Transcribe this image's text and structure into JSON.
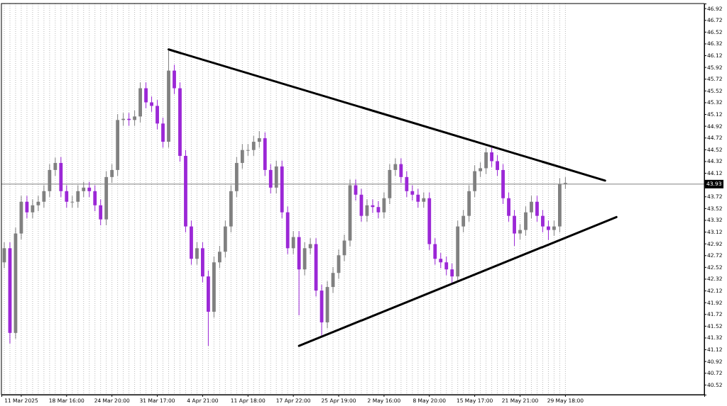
{
  "chart_data": {
    "type": "candlestick",
    "categories": [
      null,
      null,
      null,
      "11 Mar 2025",
      null,
      null,
      null,
      null,
      null,
      null,
      null,
      "18 Mar 16:00",
      null,
      null,
      null,
      null,
      null,
      null,
      null,
      "24 Mar 20:00",
      null,
      null,
      null,
      null,
      null,
      null,
      null,
      "31 Mar 17:00",
      null,
      null,
      null,
      null,
      null,
      null,
      null,
      "4 Apr 21:00",
      null,
      null,
      null,
      null,
      null,
      null,
      null,
      "11 Apr 18:00",
      null,
      null,
      null,
      null,
      null,
      null,
      null,
      "17 Apr 22:00",
      null,
      null,
      null,
      null,
      null,
      null,
      null,
      "25 Apr 19:00",
      null,
      null,
      null,
      null,
      null,
      null,
      null,
      "2 May 16:00",
      null,
      null,
      null,
      null,
      null,
      null,
      null,
      "8 May 20:00",
      null,
      null,
      null,
      null,
      null,
      null,
      null,
      "15 May 17:00",
      null,
      null,
      null,
      null,
      null,
      null,
      null,
      "21 May 21:00",
      null,
      null,
      null,
      null,
      null,
      null,
      null,
      "29 May 18:00",
      null,
      null,
      null,
      null,
      null,
      null,
      null,
      null,
      null,
      null,
      null,
      null,
      null,
      null,
      null,
      null,
      null,
      null,
      null,
      null,
      null,
      null,
      null,
      null
    ],
    "ohlc": [
      [
        42.6,
        42.94,
        42.5,
        42.84
      ],
      [
        42.84,
        42.94,
        41.22,
        41.4
      ],
      [
        41.4,
        43.19,
        41.3,
        43.09
      ],
      [
        43.09,
        43.73,
        42.99,
        43.63
      ],
      [
        43.63,
        43.73,
        43.35,
        43.45
      ],
      [
        43.45,
        43.67,
        43.35,
        43.57
      ],
      [
        43.57,
        43.73,
        43.47,
        43.63
      ],
      [
        43.63,
        43.91,
        43.53,
        43.81
      ],
      [
        43.81,
        44.27,
        43.71,
        44.17
      ],
      [
        44.17,
        44.38,
        44.07,
        44.29
      ],
      [
        44.29,
        44.39,
        43.71,
        43.81
      ],
      [
        43.81,
        43.91,
        43.53,
        43.63
      ],
      [
        43.63,
        43.73,
        43.53,
        43.63
      ],
      [
        43.63,
        43.91,
        43.53,
        43.81
      ],
      [
        43.81,
        43.97,
        43.71,
        43.87
      ],
      [
        43.87,
        43.97,
        43.71,
        43.81
      ],
      [
        43.81,
        43.91,
        43.47,
        43.57
      ],
      [
        43.57,
        43.67,
        43.23,
        43.33
      ],
      [
        43.33,
        44.15,
        43.23,
        44.05
      ],
      [
        44.05,
        44.27,
        43.95,
        44.17
      ],
      [
        44.17,
        45.12,
        44.07,
        45.02
      ],
      [
        45.02,
        45.14,
        44.92,
        45.04
      ],
      [
        45.04,
        45.14,
        44.92,
        45.02
      ],
      [
        45.02,
        45.18,
        44.92,
        45.08
      ],
      [
        45.08,
        45.66,
        44.98,
        45.56
      ],
      [
        45.56,
        45.66,
        45.22,
        45.32
      ],
      [
        45.32,
        45.42,
        45.16,
        45.26
      ],
      [
        45.26,
        45.36,
        44.86,
        44.96
      ],
      [
        44.96,
        45.06,
        44.55,
        44.65
      ],
      [
        44.65,
        46.2,
        44.55,
        45.86
      ],
      [
        45.86,
        45.96,
        45.46,
        45.56
      ],
      [
        45.56,
        45.66,
        44.31,
        44.41
      ],
      [
        44.41,
        44.51,
        43.11,
        43.21
      ],
      [
        43.21,
        43.31,
        42.56,
        42.66
      ],
      [
        42.66,
        42.94,
        42.56,
        42.84
      ],
      [
        42.84,
        42.94,
        42.26,
        42.36
      ],
      [
        42.36,
        42.46,
        41.18,
        41.76
      ],
      [
        41.76,
        42.7,
        41.66,
        42.6
      ],
      [
        42.6,
        42.88,
        42.5,
        42.78
      ],
      [
        42.78,
        43.31,
        42.68,
        43.21
      ],
      [
        43.21,
        43.91,
        43.11,
        43.81
      ],
      [
        43.81,
        44.39,
        43.71,
        44.29
      ],
      [
        44.29,
        44.61,
        44.19,
        44.51
      ],
      [
        44.51,
        44.61,
        44.41,
        44.51
      ],
      [
        44.51,
        44.75,
        44.41,
        44.65
      ],
      [
        44.65,
        44.83,
        44.55,
        44.71
      ],
      [
        44.71,
        44.81,
        44.07,
        44.17
      ],
      [
        44.17,
        44.27,
        43.77,
        43.87
      ],
      [
        43.87,
        44.33,
        43.77,
        44.23
      ],
      [
        44.23,
        44.33,
        43.35,
        43.45
      ],
      [
        43.45,
        43.55,
        42.74,
        42.84
      ],
      [
        42.84,
        43.13,
        42.74,
        43.03
      ],
      [
        43.03,
        43.13,
        41.7,
        42.48
      ],
      [
        42.48,
        42.94,
        42.38,
        42.84
      ],
      [
        42.84,
        43.01,
        42.74,
        42.91
      ],
      [
        42.91,
        43.01,
        42.02,
        42.12
      ],
      [
        42.12,
        42.22,
        41.35,
        41.58
      ],
      [
        41.58,
        42.28,
        41.48,
        42.18
      ],
      [
        42.18,
        42.52,
        42.08,
        42.42
      ],
      [
        42.42,
        42.82,
        42.32,
        42.72
      ],
      [
        42.72,
        43.07,
        42.62,
        42.97
      ],
      [
        42.97,
        44.01,
        42.87,
        43.91
      ],
      [
        43.91,
        44.01,
        43.65,
        43.75
      ],
      [
        43.75,
        43.85,
        43.29,
        43.39
      ],
      [
        43.39,
        43.67,
        43.29,
        43.57
      ],
      [
        43.57,
        43.67,
        43.44,
        43.54
      ],
      [
        43.54,
        43.64,
        43.35,
        43.45
      ],
      [
        43.45,
        43.79,
        43.35,
        43.69
      ],
      [
        43.69,
        44.27,
        43.59,
        44.17
      ],
      [
        44.17,
        44.37,
        44.07,
        44.27
      ],
      [
        44.27,
        44.37,
        43.95,
        44.05
      ],
      [
        44.05,
        44.15,
        43.71,
        43.81
      ],
      [
        43.81,
        43.91,
        43.65,
        43.75
      ],
      [
        43.75,
        43.85,
        43.53,
        43.63
      ],
      [
        43.63,
        43.79,
        43.53,
        43.69
      ],
      [
        43.69,
        43.79,
        42.81,
        42.91
      ],
      [
        42.91,
        43.01,
        42.56,
        42.66
      ],
      [
        42.66,
        42.76,
        42.5,
        42.6
      ],
      [
        42.6,
        42.7,
        42.38,
        42.48
      ],
      [
        42.48,
        42.58,
        42.25,
        42.36
      ],
      [
        42.36,
        43.31,
        42.26,
        43.21
      ],
      [
        43.21,
        43.49,
        43.11,
        43.39
      ],
      [
        43.39,
        43.91,
        43.29,
        43.81
      ],
      [
        43.81,
        44.25,
        43.71,
        44.15
      ],
      [
        44.15,
        44.3,
        44.05,
        44.2
      ],
      [
        44.2,
        44.55,
        44.1,
        44.47
      ],
      [
        44.47,
        44.57,
        44.22,
        44.32
      ],
      [
        44.32,
        44.42,
        44.07,
        44.17
      ],
      [
        44.17,
        44.27,
        43.59,
        43.69
      ],
      [
        43.69,
        43.79,
        43.29,
        43.39
      ],
      [
        43.39,
        43.49,
        42.88,
        43.09
      ],
      [
        43.09,
        43.25,
        42.99,
        43.15
      ],
      [
        43.15,
        43.55,
        43.05,
        43.45
      ],
      [
        43.45,
        43.73,
        43.35,
        43.63
      ],
      [
        43.63,
        43.73,
        43.29,
        43.39
      ],
      [
        43.39,
        43.49,
        43.11,
        43.21
      ],
      [
        43.21,
        43.31,
        42.98,
        43.15
      ],
      [
        43.15,
        43.31,
        43.05,
        43.21
      ],
      [
        43.21,
        44.03,
        43.11,
        43.93
      ],
      [
        43.93,
        44.05,
        43.85,
        43.95
      ],
      null,
      null,
      null,
      null,
      null,
      null,
      null,
      null,
      null,
      null,
      null,
      null,
      null,
      null,
      null,
      null,
      null,
      null,
      null,
      null,
      null,
      null,
      null,
      null
    ],
    "colors": [
      "#808080",
      "#9b27d6",
      "#808080",
      "#808080",
      "#9b27d6",
      "#808080",
      "#808080",
      "#808080",
      "#808080",
      "#808080",
      "#9b27d6",
      "#9b27d6",
      "#808080",
      "#808080",
      "#808080",
      "#9b27d6",
      "#9b27d6",
      "#9b27d6",
      "#808080",
      "#808080",
      "#808080",
      "#808080",
      "#9b27d6",
      "#808080",
      "#808080",
      "#9b27d6",
      "#9b27d6",
      "#9b27d6",
      "#9b27d6",
      "#808080",
      "#9b27d6",
      "#9b27d6",
      "#9b27d6",
      "#9b27d6",
      "#808080",
      "#9b27d6",
      "#9b27d6",
      "#808080",
      "#808080",
      "#808080",
      "#808080",
      "#808080",
      "#808080",
      "#808080",
      "#808080",
      "#808080",
      "#9b27d6",
      "#9b27d6",
      "#808080",
      "#9b27d6",
      "#9b27d6",
      "#808080",
      "#9b27d6",
      "#808080",
      "#808080",
      "#9b27d6",
      "#9b27d6",
      "#808080",
      "#808080",
      "#808080",
      "#808080",
      "#808080",
      "#9b27d6",
      "#9b27d6",
      "#808080",
      "#9b27d6",
      "#9b27d6",
      "#808080",
      "#808080",
      "#808080",
      "#9b27d6",
      "#9b27d6",
      "#9b27d6",
      "#9b27d6",
      "#808080",
      "#9b27d6",
      "#9b27d6",
      "#9b27d6",
      "#9b27d6",
      "#9b27d6",
      "#808080",
      "#808080",
      "#808080",
      "#808080",
      "#808080",
      "#808080",
      "#9b27d6",
      "#9b27d6",
      "#9b27d6",
      "#9b27d6",
      "#9b27d6",
      "#808080",
      "#808080",
      "#808080",
      "#9b27d6",
      "#9b27d6",
      "#9b27d6",
      "#808080",
      "#808080",
      "#808080",
      null,
      null,
      null,
      null,
      null,
      null,
      null,
      null,
      null,
      null,
      null,
      null,
      null,
      null,
      null,
      null,
      null,
      null,
      null,
      null,
      null,
      null,
      null,
      null
    ],
    "series": [
      {
        "type": "line",
        "color": "#000000",
        "values": [
          null,
          null,
          null,
          null,
          null,
          null,
          null,
          null,
          null,
          null,
          null,
          null,
          null,
          null,
          null,
          null,
          null,
          null,
          null,
          null,
          null,
          null,
          null,
          null,
          null,
          null,
          null,
          null,
          null,
          46.22,
          null,
          null,
          null,
          null,
          null,
          null,
          null,
          null,
          null,
          null,
          null,
          null,
          null,
          null,
          null,
          null,
          null,
          null,
          null,
          null,
          null,
          null,
          null,
          null,
          null,
          null,
          null,
          null,
          null,
          null,
          null,
          null,
          null,
          null,
          null,
          null,
          null,
          null,
          null,
          null,
          null,
          null,
          null,
          null,
          null,
          null,
          null,
          null,
          null,
          null,
          null,
          null,
          null,
          null,
          null,
          null,
          null,
          null,
          null,
          null,
          null,
          null,
          null,
          null,
          null,
          null,
          null,
          null,
          null,
          null,
          null,
          null,
          null,
          null,
          null,
          null,
          43.99,
          null,
          null,
          null,
          null,
          null,
          null,
          null,
          null,
          null,
          null,
          null,
          null,
          null,
          null,
          null,
          null,
          null
        ]
      },
      {
        "type": "line",
        "color": "#000000",
        "values": [
          null,
          null,
          null,
          null,
          null,
          null,
          null,
          null,
          null,
          null,
          null,
          null,
          null,
          null,
          null,
          null,
          null,
          null,
          null,
          null,
          null,
          null,
          null,
          null,
          null,
          null,
          null,
          null,
          null,
          null,
          null,
          null,
          null,
          null,
          null,
          null,
          null,
          null,
          null,
          null,
          null,
          null,
          null,
          null,
          null,
          null,
          null,
          null,
          null,
          null,
          null,
          null,
          41.18,
          null,
          null,
          null,
          null,
          null,
          null,
          null,
          null,
          null,
          null,
          null,
          null,
          null,
          null,
          null,
          null,
          null,
          null,
          null,
          null,
          null,
          null,
          null,
          null,
          null,
          null,
          null,
          null,
          null,
          null,
          null,
          null,
          null,
          null,
          null,
          null,
          null,
          null,
          null,
          null,
          null,
          null,
          null,
          null,
          null,
          null,
          null,
          null,
          null,
          null,
          null,
          null,
          null,
          null,
          null,
          43.37,
          null,
          null,
          null,
          null,
          null,
          null,
          null,
          null,
          null,
          null,
          null,
          null,
          null,
          null,
          null
        ]
      }
    ],
    "ylim": [
      40.35,
      47.0
    ],
    "yticks": [
      40.52,
      40.72,
      40.92,
      41.12,
      41.32,
      41.52,
      41.72,
      41.92,
      42.12,
      42.32,
      42.52,
      42.72,
      42.92,
      43.12,
      43.32,
      43.52,
      43.72,
      {
        "value": 43.92,
        "label": null
      },
      44.12,
      44.32,
      44.52,
      44.72,
      44.92,
      45.12,
      45.32,
      45.52,
      45.72,
      45.92,
      46.12,
      46.32,
      46.52,
      46.72,
      46.92
    ],
    "ref_lines": [
      {
        "axis": "y",
        "value": 43.93,
        "label": "43.93",
        "color": "#808080"
      }
    ],
    "grid": "x"
  }
}
